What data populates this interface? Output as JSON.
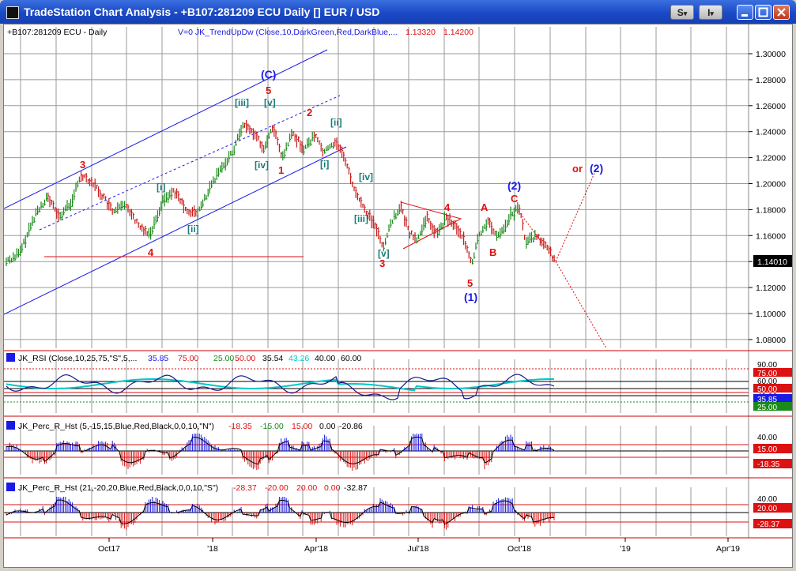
{
  "window": {
    "title": "TradeStation Chart Analysis - +B107:281209 ECU Daily [] EUR / USD",
    "buttons": {
      "s_menu": "S",
      "i_menu": "I",
      "dropdown": "▾"
    }
  },
  "main_panel": {
    "symbol_label": "+B107:281209 ECU - Daily",
    "study_label": "V=0  JK_TrendUpDw (Close,10,DarkGreen,Red,DarkBlue,...",
    "study_values": [
      "1.13320",
      "1.14200"
    ],
    "price_axis": [
      "1.30000",
      "1.28000",
      "1.26000",
      "1.24000",
      "1.22000",
      "1.20000",
      "1.18000",
      "1.16000",
      "1.14000",
      "1.12000",
      "1.10000",
      "1.08000"
    ],
    "last_price": "1.14010",
    "wave_labels": [
      {
        "text": "(C)",
        "color": "#1a1ae6"
      },
      {
        "text": "5",
        "color": "#dd1111"
      },
      {
        "text": "[iii]",
        "color": "#1a7a7a"
      },
      {
        "text": "[v]",
        "color": "#1a7a7a"
      },
      {
        "text": "2",
        "color": "#dd1111"
      },
      {
        "text": "[ii]",
        "color": "#1a7a7a"
      },
      {
        "text": "[iv]",
        "color": "#1a7a7a"
      },
      {
        "text": "1",
        "color": "#dd1111"
      },
      {
        "text": "[i]",
        "color": "#1a7a7a"
      },
      {
        "text": "3",
        "color": "#dd1111"
      },
      {
        "text": "[i]",
        "color": "#1a7a7a"
      },
      {
        "text": "[ii]",
        "color": "#1a7a7a"
      },
      {
        "text": "4",
        "color": "#dd1111"
      },
      {
        "text": "[iv]",
        "color": "#1a7a7a"
      },
      {
        "text": "[iii]",
        "color": "#1a7a7a"
      },
      {
        "text": "[v]",
        "color": "#1a7a7a"
      },
      {
        "text": "3",
        "color": "#dd1111"
      },
      {
        "text": "4",
        "color": "#dd1111"
      },
      {
        "text": "5",
        "color": "#dd1111"
      },
      {
        "text": "(1)",
        "color": "#1a1ae6"
      },
      {
        "text": "A",
        "color": "#dd1111"
      },
      {
        "text": "B",
        "color": "#dd1111"
      },
      {
        "text": "C",
        "color": "#dd1111"
      },
      {
        "text": "(2)",
        "color": "#1a1ae6"
      },
      {
        "text": "or",
        "color": "#dd1111"
      },
      {
        "text": "(2)",
        "color": "#1a1ae6"
      }
    ]
  },
  "rsi_panel": {
    "label": "JK_RSI (Close,10,25,75,\"S\",5,...",
    "values": [
      {
        "text": "35.85",
        "color": "#1a1ae6"
      },
      {
        "text": "75.00",
        "color": "#dd1111"
      },
      {
        "text": "25.00",
        "color": "#1a8a1a"
      },
      {
        "text": "50.00",
        "color": "#dd1111"
      },
      {
        "text": "35.54",
        "color": "#000000"
      },
      {
        "text": "43.26",
        "color": "#00c8c8"
      },
      {
        "text": "40.00",
        "color": "#000000"
      },
      {
        "text": "60.00",
        "color": "#000000"
      }
    ],
    "axis": [
      "90.00",
      "75.00",
      "60.00",
      "50.00",
      "40.00",
      "35.85",
      "25.00"
    ]
  },
  "perc_r_panel_1": {
    "label": "JK_Perc_R_Hst (5,-15,15,Blue,Red,Black,0,0,10,\"N\")",
    "values": [
      {
        "text": "-18.35",
        "color": "#dd1111"
      },
      {
        "text": "-15.00",
        "color": "#1a8a1a"
      },
      {
        "text": "15.00",
        "color": "#dd1111"
      },
      {
        "text": "0.00",
        "color": "#000000"
      },
      {
        "text": "-20.86",
        "color": "#000000"
      }
    ],
    "axis": [
      "40.00",
      "15.00",
      "-18.35"
    ]
  },
  "perc_r_panel_2": {
    "label": "JK_Perc_R_Hst (21,-20,20,Blue,Red,Black,0,0,10,\"S\")",
    "values": [
      {
        "text": "-28.37",
        "color": "#dd1111"
      },
      {
        "text": "-20.00",
        "color": "#dd1111"
      },
      {
        "text": "20.00",
        "color": "#dd1111"
      },
      {
        "text": "0.00",
        "color": "#dd1111"
      },
      {
        "text": "-32.87",
        "color": "#000000"
      }
    ],
    "axis": [
      "40.00",
      "20.00",
      "-28.37"
    ]
  },
  "time_axis": [
    "Oct17",
    "'18",
    "Apr'18",
    "Jul'18",
    "Oct'18",
    "'19",
    "Apr'19"
  ],
  "colors": {
    "up_bar": "#1a8a1a",
    "down_bar": "#c81a1a",
    "channel": "#1a1ae6",
    "wave_red": "#dd1111",
    "wave_blue": "#1a1ae6",
    "wave_teal": "#1a7a7a",
    "cyan_ma": "#00c8c8",
    "grid": "#9a9a9a"
  }
}
